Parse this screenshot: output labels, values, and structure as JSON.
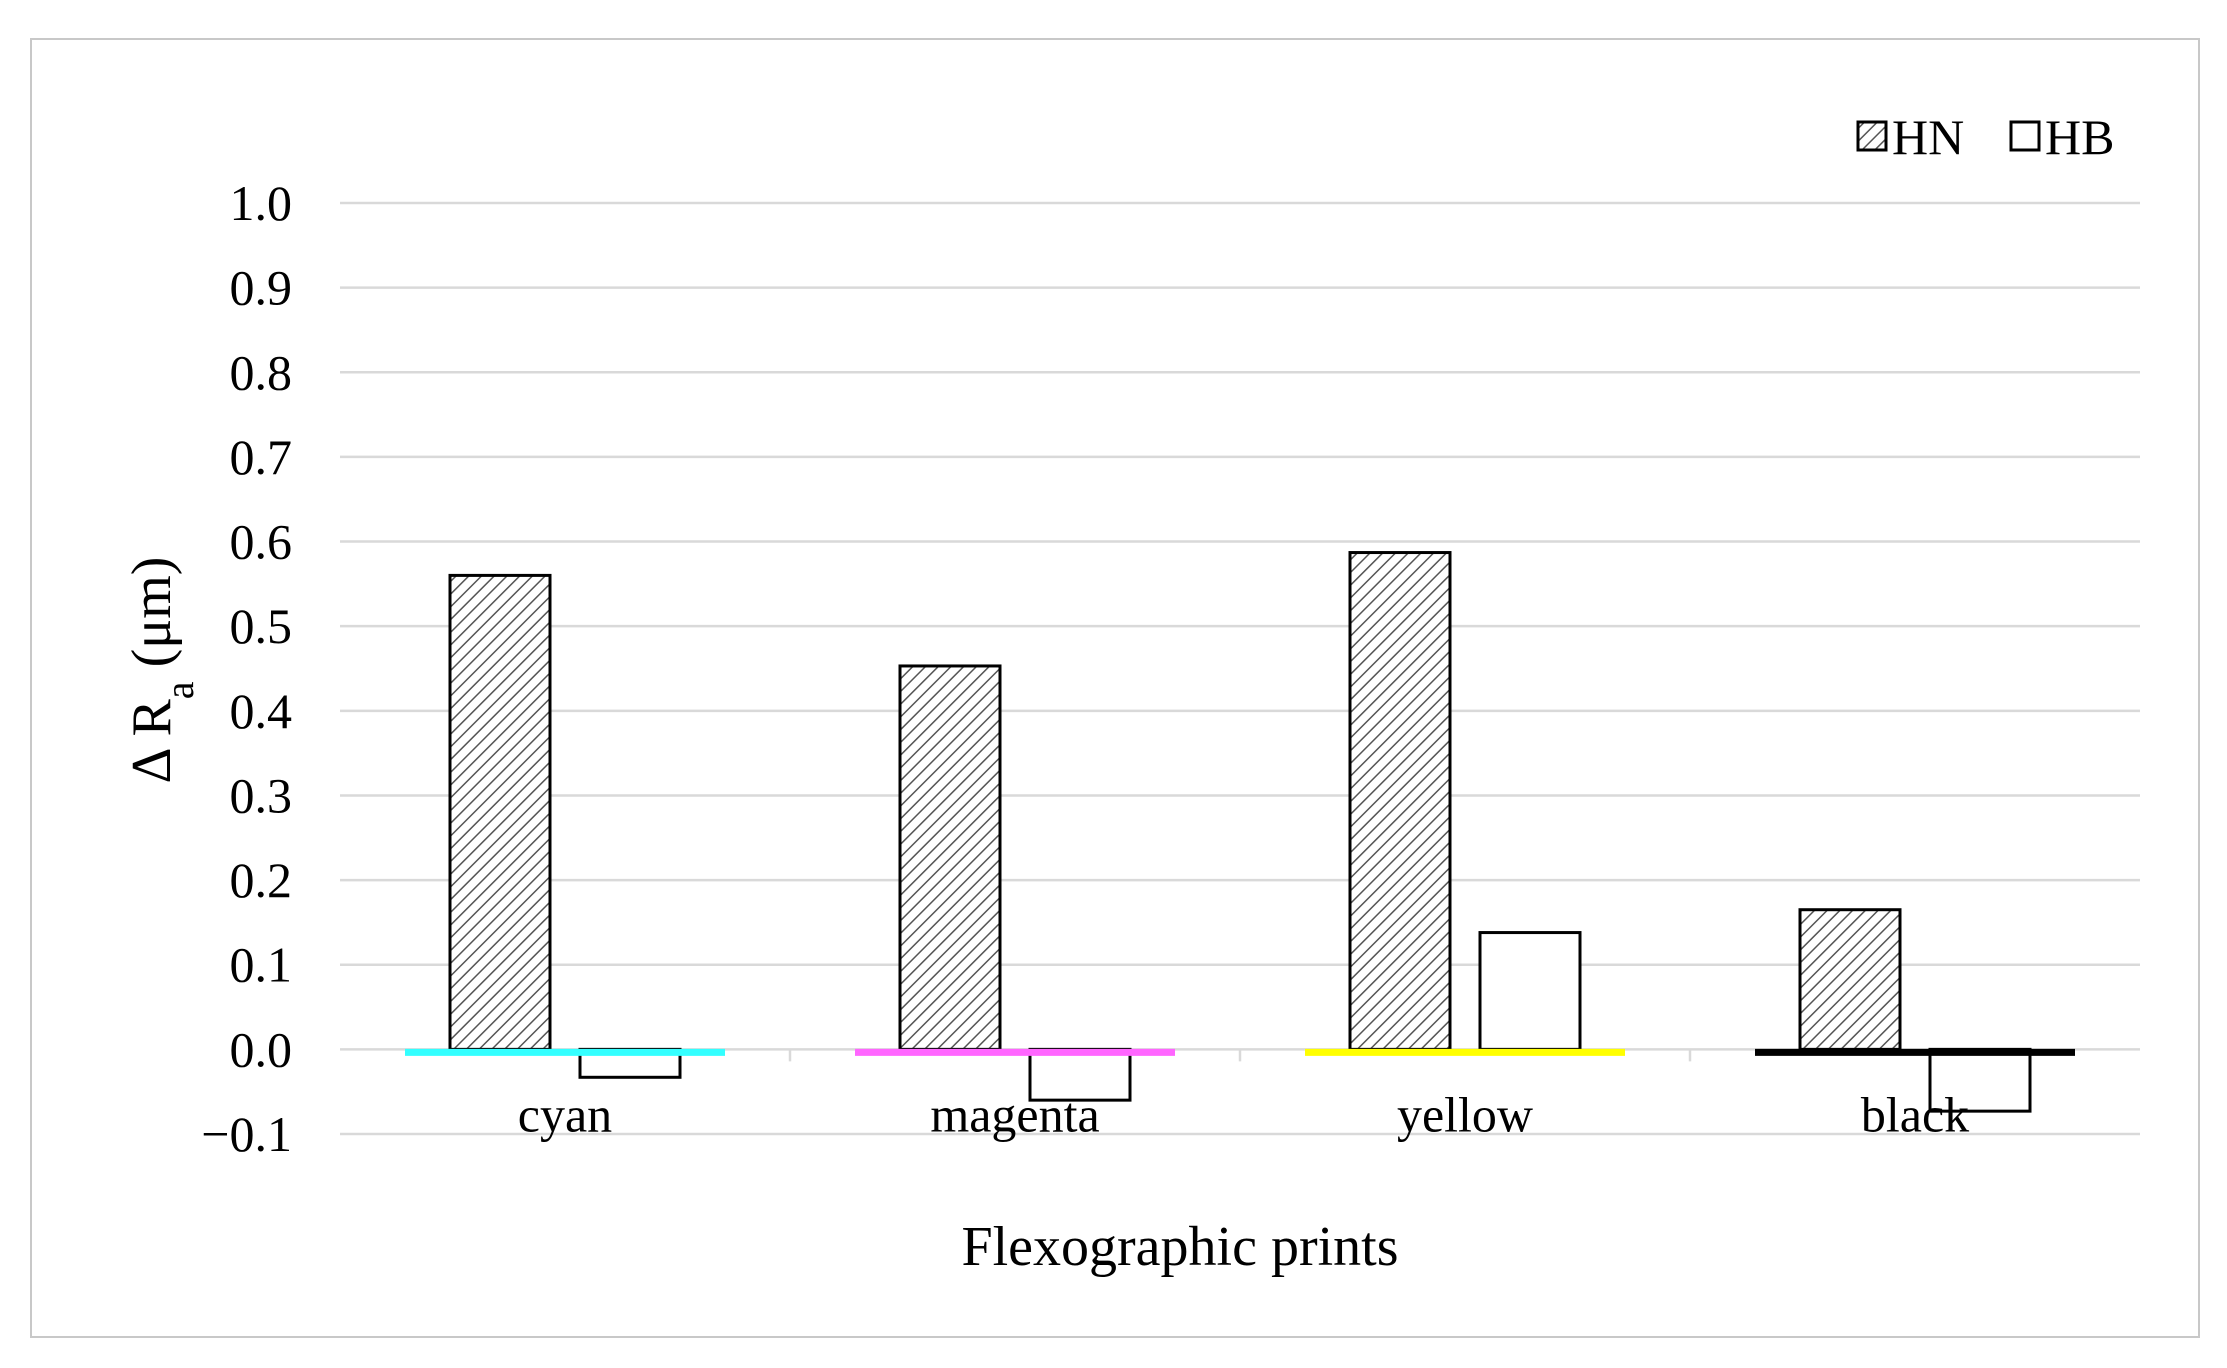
{
  "chart_data": {
    "type": "bar",
    "title": "",
    "xlabel": "Flexographic prints",
    "ylabel_main": "Δ R",
    "ylabel_sub": "a",
    "ylabel_unit": " (μm)",
    "categories": [
      "cyan",
      "magenta",
      "yellow",
      "black"
    ],
    "category_colors": [
      "#33ffff",
      "#ff66ff",
      "#ffff00",
      "#000000"
    ],
    "series": [
      {
        "name": "HN",
        "pattern": "diagonal-hatch",
        "values": [
          0.56,
          0.453,
          0.587,
          0.165
        ]
      },
      {
        "name": "HB",
        "pattern": "none",
        "values": [
          -0.033,
          -0.06,
          0.138,
          -0.073
        ]
      }
    ],
    "ylim": [
      -0.1,
      1.0
    ],
    "yticks": [
      "−0.1",
      "0.0",
      "0.1",
      "0.2",
      "0.3",
      "0.4",
      "0.5",
      "0.6",
      "0.7",
      "0.8",
      "0.9",
      "1.0"
    ],
    "ytick_values": [
      -0.1,
      0,
      0.1,
      0.2,
      0.3,
      0.4,
      0.5,
      0.6,
      0.7,
      0.8,
      0.9,
      1.0
    ],
    "grid": true,
    "legend_position": "top-right"
  }
}
